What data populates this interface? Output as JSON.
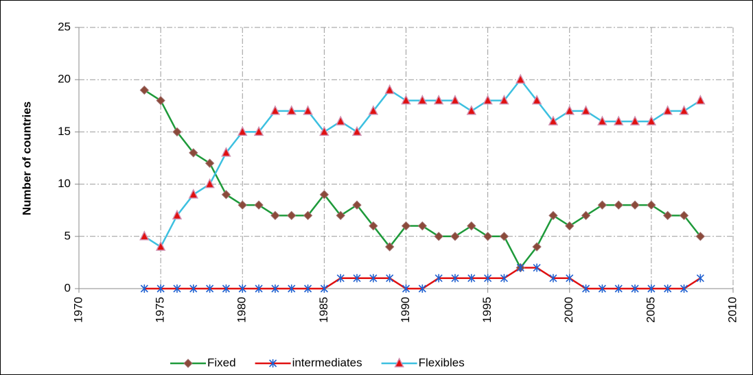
{
  "chart_data": {
    "type": "line",
    "y_label": "Number of countries",
    "x": [
      1974,
      1975,
      1976,
      1977,
      1978,
      1979,
      1980,
      1981,
      1982,
      1983,
      1984,
      1985,
      1986,
      1987,
      1988,
      1989,
      1990,
      1991,
      1992,
      1993,
      1994,
      1995,
      1996,
      1997,
      1998,
      1999,
      2000,
      2001,
      2002,
      2003,
      2004,
      2005,
      2006,
      2007,
      2008
    ],
    "series": [
      {
        "name": "Fixed",
        "color": "#1e9a3a",
        "marker": "diamond",
        "marker_color": "#8b4a3a",
        "values": [
          19,
          18,
          15,
          13,
          12,
          9,
          8,
          8,
          7,
          7,
          7,
          9,
          7,
          8,
          6,
          4,
          6,
          6,
          5,
          5,
          6,
          5,
          5,
          2,
          4,
          7,
          6,
          7,
          8,
          8,
          8,
          8,
          7,
          7,
          5
        ]
      },
      {
        "name": "intermediates",
        "color": "#e01010",
        "marker": "asterisk",
        "marker_color": "#2060d0",
        "values": [
          0,
          0,
          0,
          0,
          0,
          0,
          0,
          0,
          0,
          0,
          0,
          0,
          1,
          1,
          1,
          1,
          0,
          0,
          1,
          1,
          1,
          1,
          1,
          2,
          2,
          1,
          1,
          0,
          0,
          0,
          0,
          0,
          0,
          0,
          1
        ]
      },
      {
        "name": "Flexibles",
        "color": "#3cc0e0",
        "marker": "triangle",
        "marker_color": "#e01010",
        "values": [
          5,
          4,
          7,
          9,
          10,
          13,
          15,
          15,
          17,
          17,
          17,
          15,
          16,
          15,
          17,
          19,
          18,
          18,
          18,
          18,
          17,
          18,
          18,
          20,
          18,
          16,
          17,
          17,
          16,
          16,
          16,
          16,
          17,
          17,
          18
        ]
      }
    ],
    "xlim": [
      1970,
      2010
    ],
    "xticks": [
      1970,
      1975,
      1980,
      1985,
      1990,
      1995,
      2000,
      2005,
      2010
    ],
    "ylim": [
      0,
      25
    ],
    "yticks": [
      0,
      5,
      10,
      15,
      20,
      25
    ],
    "grid": true,
    "legend": "bottom"
  }
}
